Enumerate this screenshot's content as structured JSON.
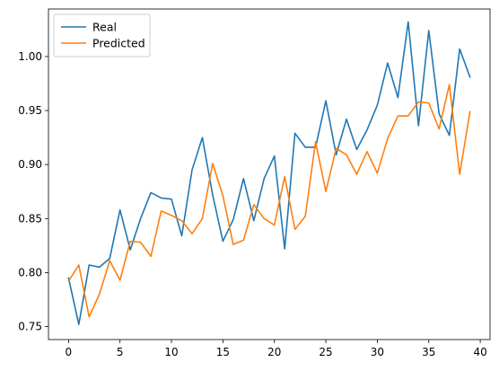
{
  "chart_data": {
    "type": "line",
    "title": "",
    "xlabel": "",
    "ylabel": "",
    "xlim": [
      -1.95,
      40.95
    ],
    "ylim": [
      0.738,
      1.044
    ],
    "grid": false,
    "legend_position": "upper-left",
    "x_ticks": [
      0,
      5,
      10,
      15,
      20,
      25,
      30,
      35,
      40
    ],
    "y_ticks": [
      0.75,
      0.8,
      0.85,
      0.9,
      0.95,
      1.0
    ],
    "x_tick_labels": [
      "0",
      "5",
      "10",
      "15",
      "20",
      "25",
      "30",
      "35",
      "40"
    ],
    "y_tick_labels": [
      "0.75",
      "0.80",
      "0.85",
      "0.90",
      "0.95",
      "1.00"
    ],
    "x": [
      0,
      1,
      2,
      3,
      4,
      5,
      6,
      7,
      8,
      9,
      10,
      11,
      12,
      13,
      14,
      15,
      16,
      17,
      18,
      19,
      20,
      21,
      22,
      23,
      24,
      25,
      26,
      27,
      28,
      29,
      30,
      31,
      32,
      33,
      34,
      35,
      36,
      37,
      38,
      39
    ],
    "series": [
      {
        "name": "Real",
        "color": "#1f77b4",
        "values": [
          0.795,
          0.752,
          0.807,
          0.805,
          0.813,
          0.858,
          0.821,
          0.85,
          0.874,
          0.869,
          0.868,
          0.834,
          0.895,
          0.925,
          0.872,
          0.829,
          0.849,
          0.887,
          0.848,
          0.887,
          0.908,
          0.822,
          0.929,
          0.916,
          0.916,
          0.959,
          0.909,
          0.942,
          0.914,
          0.932,
          0.955,
          0.994,
          0.962,
          1.032,
          0.936,
          1.024,
          0.947,
          0.927,
          1.007,
          0.981
        ]
      },
      {
        "name": "Predicted",
        "color": "#ff7f0e",
        "values": [
          0.792,
          0.807,
          0.759,
          0.78,
          0.811,
          0.793,
          0.829,
          0.828,
          0.815,
          0.857,
          0.853,
          0.848,
          0.836,
          0.85,
          0.901,
          0.871,
          0.826,
          0.83,
          0.863,
          0.85,
          0.844,
          0.889,
          0.84,
          0.852,
          0.921,
          0.875,
          0.915,
          0.909,
          0.891,
          0.912,
          0.892,
          0.924,
          0.945,
          0.945,
          0.958,
          0.957,
          0.933,
          0.974,
          0.891,
          0.949
        ]
      }
    ]
  }
}
